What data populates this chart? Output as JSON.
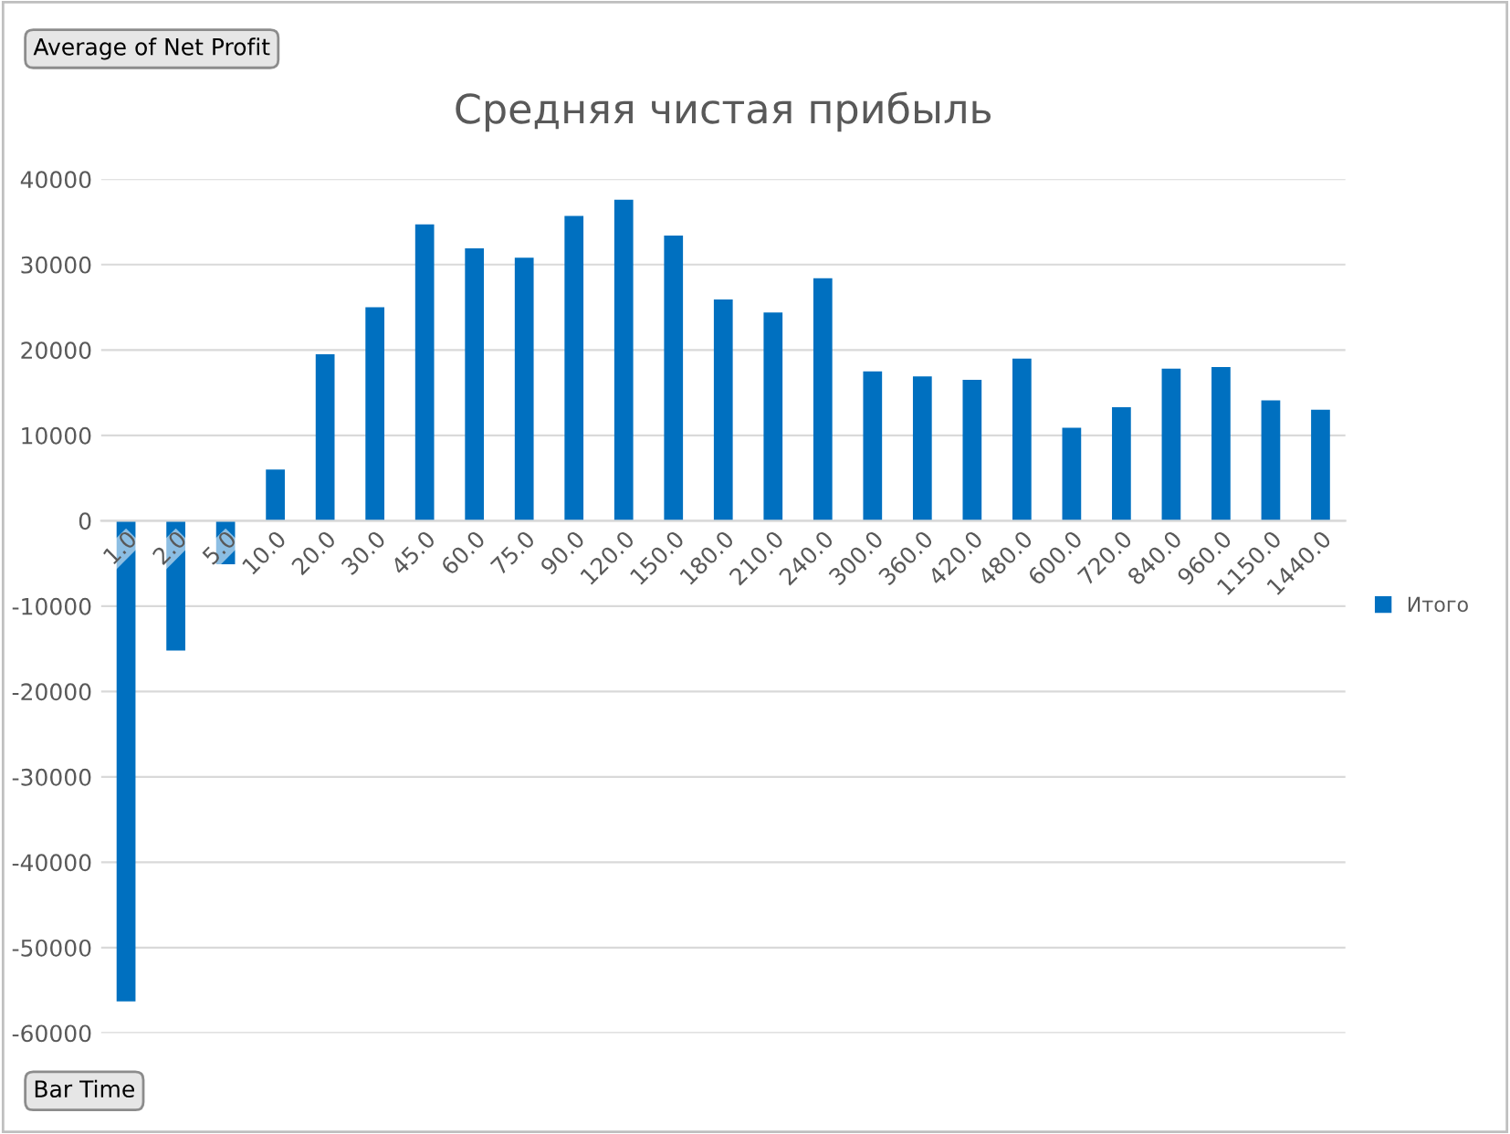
{
  "chart_data": {
    "type": "bar",
    "title": "Средняя чистая прибыль",
    "categories": [
      "1.0",
      "2.0",
      "5.0",
      "10.0",
      "20.0",
      "30.0",
      "45.0",
      "60.0",
      "75.0",
      "90.0",
      "120.0",
      "150.0",
      "180.0",
      "210.0",
      "240.0",
      "300.0",
      "360.0",
      "420.0",
      "480.0",
      "600.0",
      "720.0",
      "840.0",
      "960.0",
      "1150.0",
      "1440.0"
    ],
    "series": [
      {
        "name": "Итого",
        "color": "#0070c0",
        "values": [
          -56300,
          -15200,
          -5100,
          6000,
          19500,
          25000,
          34700,
          31900,
          30800,
          35700,
          37600,
          33400,
          25900,
          24400,
          28400,
          17500,
          16900,
          16500,
          19000,
          10900,
          13300,
          17800,
          18000,
          14100,
          13000
        ]
      }
    ],
    "ylim": [
      -60000,
      40000
    ],
    "yticks": [
      -60000,
      -50000,
      -40000,
      -30000,
      -20000,
      -10000,
      0,
      10000,
      20000,
      30000,
      40000
    ],
    "grid": "y",
    "legend": "right",
    "annotations": [
      "Average of Net Profit",
      "Bar Time"
    ]
  }
}
